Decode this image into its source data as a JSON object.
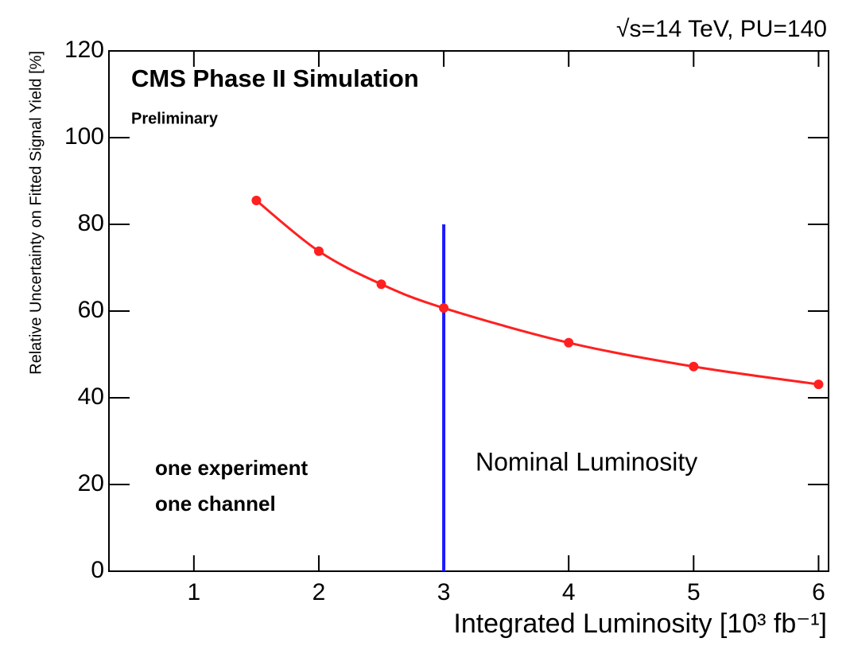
{
  "chart_data": {
    "type": "line",
    "title": "CMS Phase II Simulation",
    "subtitle": "Preliminary",
    "energy_label": "√s=14 TeV, PU=140",
    "annotations": [
      "one experiment",
      "one channel"
    ],
    "xlabel": "Integrated Luminosity [10³ fb⁻¹]",
    "ylabel": "Relative Uncertainty on Fitted Signal Yield [%]",
    "x": [
      1.5,
      2,
      2.5,
      3,
      4,
      5,
      6
    ],
    "series": [
      {
        "name": "uncertainty",
        "color": "#ff2020",
        "values": [
          85.5,
          73.8,
          66.2,
          60.7,
          52.7,
          47.2,
          43.1
        ]
      }
    ],
    "vline": {
      "x": 3,
      "ymin": 0,
      "ymax": 80,
      "color": "#1a1aff",
      "label": "Nominal Luminosity"
    },
    "xlim": [
      0.32,
      6.08
    ],
    "ylim": [
      0,
      120
    ],
    "xticks": [
      1,
      2,
      3,
      4,
      5,
      6
    ],
    "yticks": [
      0,
      20,
      40,
      60,
      80,
      100,
      120
    ]
  }
}
